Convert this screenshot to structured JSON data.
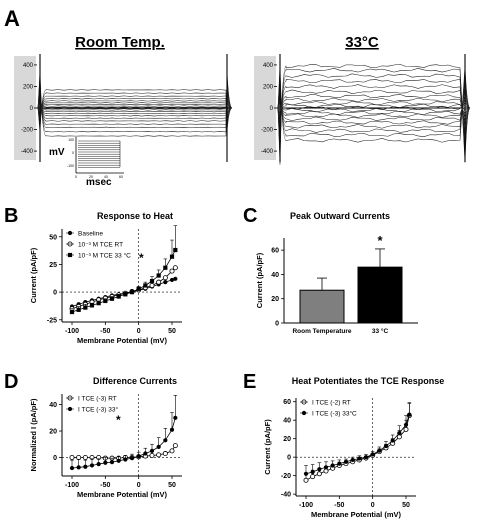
{
  "panels": {
    "A": "A",
    "B": "B",
    "C": "C",
    "D": "D",
    "E": "E"
  },
  "chart_data": [
    {
      "id": "A-room",
      "type": "line",
      "title": "Room Temp.",
      "yticks": [
        400,
        200,
        0,
        -200,
        -400
      ],
      "ylim": [
        -520,
        520
      ],
      "sweep_levels": [
        -260,
        -220,
        -180,
        -150,
        -120,
        -95,
        -72,
        -52,
        -34,
        -18,
        -6,
        0,
        6,
        18,
        32,
        48,
        66,
        86,
        110,
        138,
        168
      ],
      "inset": {
        "ylabel": "mV",
        "xlabel": "msec",
        "yticks": [
          "100",
          "0",
          "-100"
        ],
        "xticks": [
          "0",
          "20",
          "40",
          "60"
        ]
      }
    },
    {
      "id": "A-warm",
      "type": "line",
      "title": "33°C",
      "yticks": [
        400,
        200,
        0,
        -200,
        -400
      ],
      "ylim": [
        -520,
        520
      ],
      "sweep_levels": [
        -300,
        -250,
        -210,
        -170,
        -135,
        -100,
        -70,
        -45,
        -20,
        0,
        20,
        45,
        75,
        110,
        150,
        200,
        250,
        300,
        350,
        390
      ]
    },
    {
      "id": "B",
      "type": "line",
      "title": "Response to Heat",
      "xlabel": "Membrane Potential (mV)",
      "ylabel": "Current (pA/pF)",
      "xlim": [
        -115,
        65
      ],
      "ylim": [
        -27,
        57
      ],
      "xticks": [
        -100,
        -50,
        0,
        50
      ],
      "yticks": [
        -25,
        0,
        25,
        50
      ],
      "x": [
        -100,
        -90,
        -80,
        -70,
        -60,
        -50,
        -40,
        -30,
        -20,
        -10,
        0,
        10,
        20,
        30,
        40,
        50,
        55
      ],
      "series": [
        {
          "name": "Baseline",
          "marker": "filled-circle",
          "values": [
            -13,
            -11,
            -9,
            -7.5,
            -6,
            -4.5,
            -3,
            -2,
            -1,
            0,
            1.5,
            3,
            5,
            7,
            9,
            11,
            12
          ]
        },
        {
          "name": "10⁻³ M TCE RT",
          "marker": "open-circle",
          "values": [
            -15,
            -13,
            -11,
            -9,
            -7,
            -5.5,
            -4,
            -2.5,
            -1,
            0.5,
            2,
            4,
            6,
            9,
            13,
            19,
            22
          ]
        },
        {
          "name": "10⁻³ M TCE 33 °C",
          "marker": "filled-square",
          "values": [
            -18,
            -16,
            -14,
            -12,
            -10,
            -8,
            -6,
            -4,
            -2,
            0,
            3,
            6,
            10,
            15,
            22,
            32,
            38
          ],
          "errors": [
            3,
            3,
            3,
            2,
            2,
            2,
            2,
            2,
            2,
            2,
            2,
            3,
            4,
            5,
            8,
            15,
            22
          ]
        }
      ],
      "legend": "top-left",
      "annotation": "*"
    },
    {
      "id": "C",
      "type": "bar",
      "title": "Peak Outward Currents",
      "ylabel": "Current (pA/pF)",
      "categories": [
        "Room Temperature",
        "33 °C"
      ],
      "values": [
        27,
        46
      ],
      "errors": [
        10,
        15
      ],
      "bar_colors": [
        "#7f7f7f",
        "#000000"
      ],
      "ylim": [
        0,
        70
      ],
      "yticks": [
        0,
        20,
        40,
        60
      ],
      "annotation": "*"
    },
    {
      "id": "D",
      "type": "line",
      "title": "Difference Currents",
      "xlabel": "Membrane Potential (mV)",
      "ylabel": "Normalized I (pA/pF)",
      "xlim": [
        -115,
        65
      ],
      "ylim": [
        -14,
        48
      ],
      "xticks": [
        -100,
        -50,
        0,
        50
      ],
      "yticks": [
        0,
        20,
        40
      ],
      "x": [
        -100,
        -90,
        -80,
        -70,
        -60,
        -50,
        -40,
        -30,
        -20,
        -10,
        0,
        10,
        20,
        30,
        40,
        50,
        55
      ],
      "series": [
        {
          "name": "I TCE (-3) RT",
          "marker": "open-circle",
          "values": [
            0,
            0,
            0,
            0,
            0,
            -0.5,
            -0.5,
            -0.5,
            0,
            0,
            0.5,
            1,
            1.5,
            2,
            3,
            5,
            9
          ]
        },
        {
          "name": "I TCE (-3) 33°",
          "marker": "filled-circle",
          "values": [
            -8,
            -7.5,
            -7,
            -6,
            -5,
            -4,
            -3.5,
            -2.5,
            -1.5,
            -0.5,
            1,
            3,
            5,
            8,
            13,
            21,
            30
          ],
          "errors": [
            6,
            6,
            5,
            5,
            4,
            4,
            3,
            3,
            3,
            3,
            3,
            4,
            5,
            7,
            9,
            13,
            17
          ]
        }
      ],
      "legend": "top-left",
      "annotation": "*"
    },
    {
      "id": "E",
      "type": "line",
      "title": "Heat Potentiates the TCE Response",
      "xlabel": "Membrane Potential (mV)",
      "ylabel": "Current (pA/pF)",
      "xlim": [
        -115,
        65
      ],
      "ylim": [
        -42,
        64
      ],
      "xticks": [
        -100,
        -50,
        0,
        50
      ],
      "yticks": [
        -40,
        -20,
        0,
        20,
        40,
        60
      ],
      "x": [
        -100,
        -90,
        -80,
        -70,
        -60,
        -50,
        -40,
        -30,
        -20,
        -10,
        0,
        10,
        20,
        30,
        40,
        50,
        55
      ],
      "series": [
        {
          "name": "I TCE (-2) RT",
          "marker": "open-circle",
          "values": [
            -25,
            -21,
            -18,
            -15,
            -12,
            -9,
            -7,
            -5,
            -3,
            -1,
            2,
            6,
            10,
            15,
            22,
            30,
            45
          ],
          "errors": [
            8,
            7,
            6,
            5,
            4,
            3,
            3,
            3,
            2,
            2,
            2,
            3,
            4,
            5,
            7,
            10,
            14
          ]
        },
        {
          "name": "I TCE (-3) 33°C",
          "marker": "filled-circle",
          "values": [
            -18,
            -16,
            -13,
            -11,
            -9,
            -7,
            -5,
            -3,
            -1.5,
            0,
            3,
            7,
            12,
            18,
            26,
            35,
            46
          ],
          "errors": [
            9,
            8,
            7,
            6,
            5,
            4,
            3,
            3,
            3,
            3,
            3,
            4,
            5,
            6,
            8,
            10,
            12
          ]
        }
      ],
      "legend": "top-left"
    }
  ]
}
